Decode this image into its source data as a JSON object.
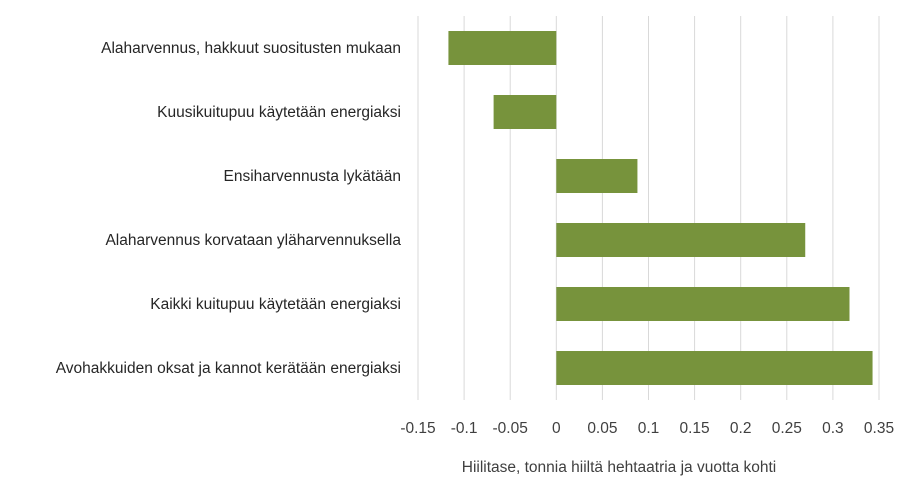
{
  "chart_data": {
    "type": "bar",
    "orientation": "horizontal",
    "categories": [
      "Alaharvennus, hakkuut suositusten mukaan",
      "Kuusikuitupuu käytetään energiaksi",
      "Ensiharvennusta lykätään",
      "Alaharvennus korvataan yläharvennuksella",
      "Kaikki kuitupuu käytetään energiaksi",
      "Avohakkuiden oksat ja kannot kerätään energiaksi"
    ],
    "values": [
      -0.117,
      -0.068,
      0.088,
      0.27,
      0.318,
      0.343
    ],
    "bar_color": "#77933c",
    "xlabel": "Hiilitase, tonnia hiiltä hehtaatria ja vuotta kohti",
    "ylabel": "",
    "title": "",
    "xlim": [
      -0.15,
      0.35
    ],
    "xticks": [
      "-0.15",
      "-0.1",
      "-0.05",
      "0",
      "0.05",
      "0.1",
      "0.15",
      "0.2",
      "0.25",
      "0.3",
      "0.35"
    ],
    "grid": "vertical",
    "legend": "none"
  }
}
